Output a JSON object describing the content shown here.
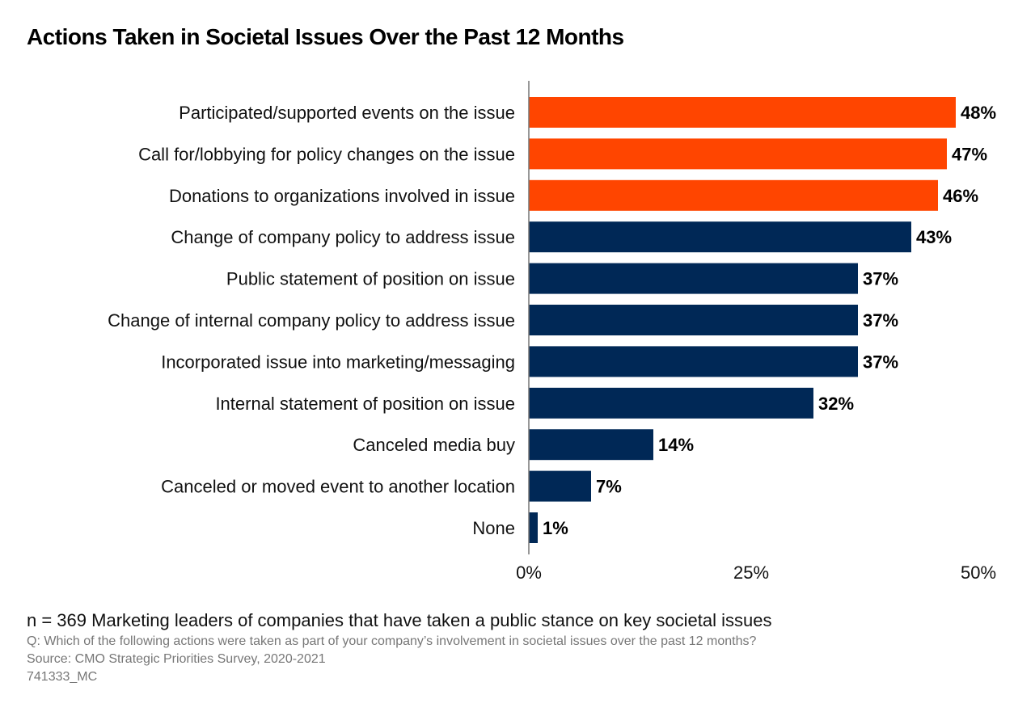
{
  "chart_data": {
    "type": "bar",
    "orientation": "horizontal",
    "title": "Actions Taken in Societal Issues Over the Past 12 Months",
    "categories": [
      "Participated/supported events on the issue",
      "Call for/lobbying for policy changes on the issue",
      "Donations to organizations involved in issue",
      "Change of company policy to address issue",
      "Public statement of position on issue",
      "Change of internal company policy to address issue",
      "Incorporated issue into marketing/messaging",
      "Internal statement of position on issue",
      "Canceled media buy",
      "Canceled or moved event to another location",
      "None"
    ],
    "values": [
      48,
      47,
      46,
      43,
      37,
      37,
      37,
      32,
      14,
      7,
      1
    ],
    "data_labels": [
      "48%",
      "47%",
      "46%",
      "43%",
      "37%",
      "37%",
      "37%",
      "32%",
      "14%",
      "7%",
      "1%"
    ],
    "bar_colors": [
      "#FF4500",
      "#FF4500",
      "#FF4500",
      "#002856",
      "#002856",
      "#002856",
      "#002856",
      "#002856",
      "#002856",
      "#002856",
      "#002856"
    ],
    "xlim": [
      0,
      50
    ],
    "xticks": [
      0,
      25,
      50
    ],
    "xtick_labels": [
      "0%",
      "25%",
      "50%"
    ],
    "xlabel": "",
    "ylabel": "",
    "grid": false,
    "legend": "none"
  },
  "footer": {
    "note": "n = 369 Marketing leaders of companies that have taken a public stance on key societal issues",
    "question": "Q: Which of the following actions were taken as part of your company’s involvement in societal issues over the past 12 months?",
    "source": "Source: CMO Strategic Priorities Survey, 2020-2021",
    "code": "741333_MC"
  }
}
